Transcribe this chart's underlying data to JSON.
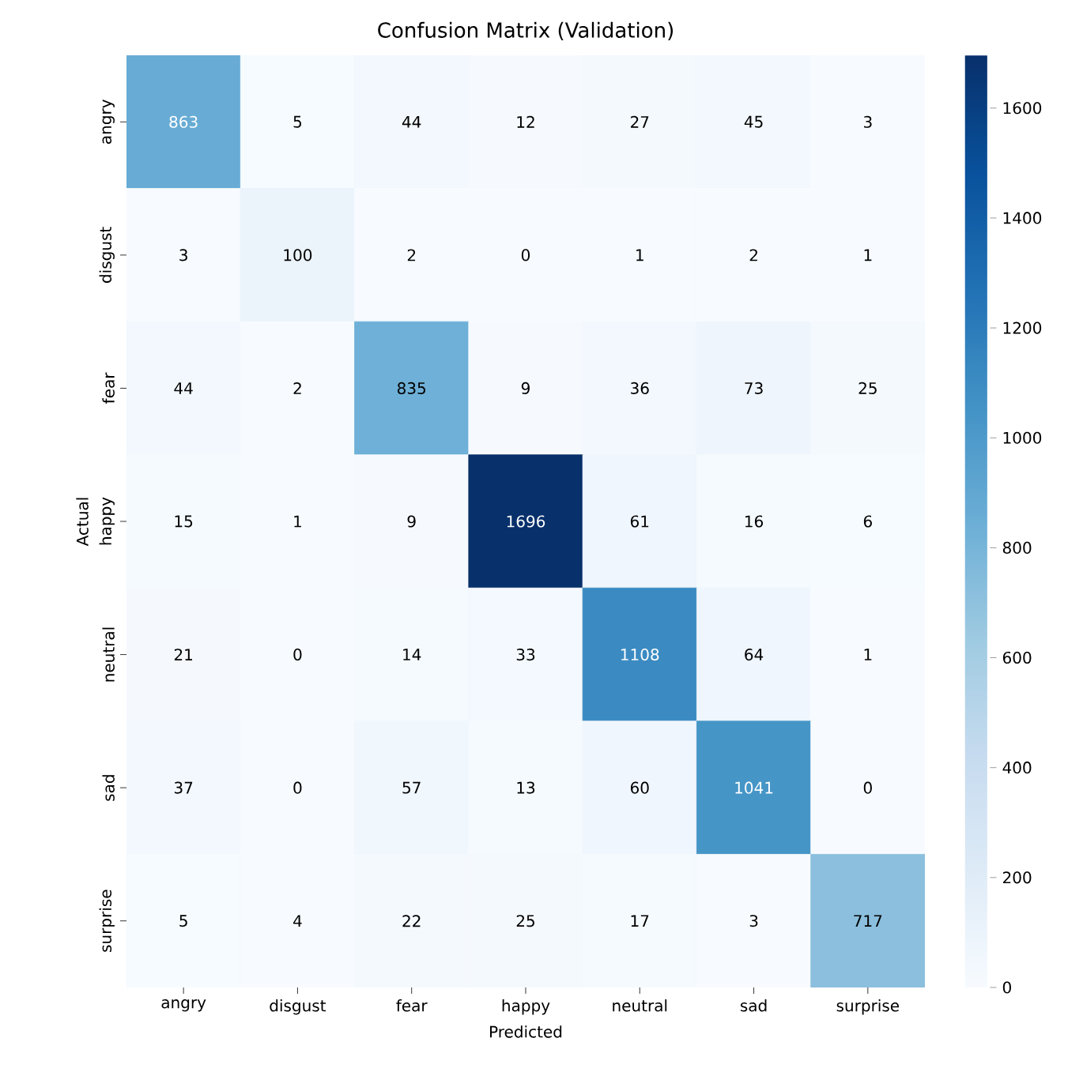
{
  "chart_data": {
    "type": "heatmap",
    "title": "Confusion Matrix (Validation)",
    "xlabel": "Predicted",
    "ylabel": "Actual",
    "categories": [
      "angry",
      "disgust",
      "fear",
      "happy",
      "neutral",
      "sad",
      "surprise"
    ],
    "y_categories": [
      "angry",
      "disgust",
      "fear",
      "happy",
      "neutral",
      "sad",
      "surprise"
    ],
    "cells": [
      [
        863,
        5,
        44,
        12,
        27,
        45,
        3
      ],
      [
        3,
        100,
        2,
        0,
        1,
        2,
        1
      ],
      [
        44,
        2,
        835,
        9,
        36,
        73,
        25
      ],
      [
        15,
        1,
        9,
        1696,
        61,
        16,
        6
      ],
      [
        21,
        0,
        14,
        33,
        1108,
        64,
        1
      ],
      [
        37,
        0,
        57,
        13,
        60,
        1041,
        0
      ],
      [
        5,
        4,
        22,
        25,
        17,
        3,
        717
      ]
    ],
    "clim": [
      0,
      1696
    ],
    "cticks": [
      0,
      200,
      400,
      600,
      800,
      1000,
      1200,
      1400,
      1600
    ],
    "data_labels": true
  }
}
